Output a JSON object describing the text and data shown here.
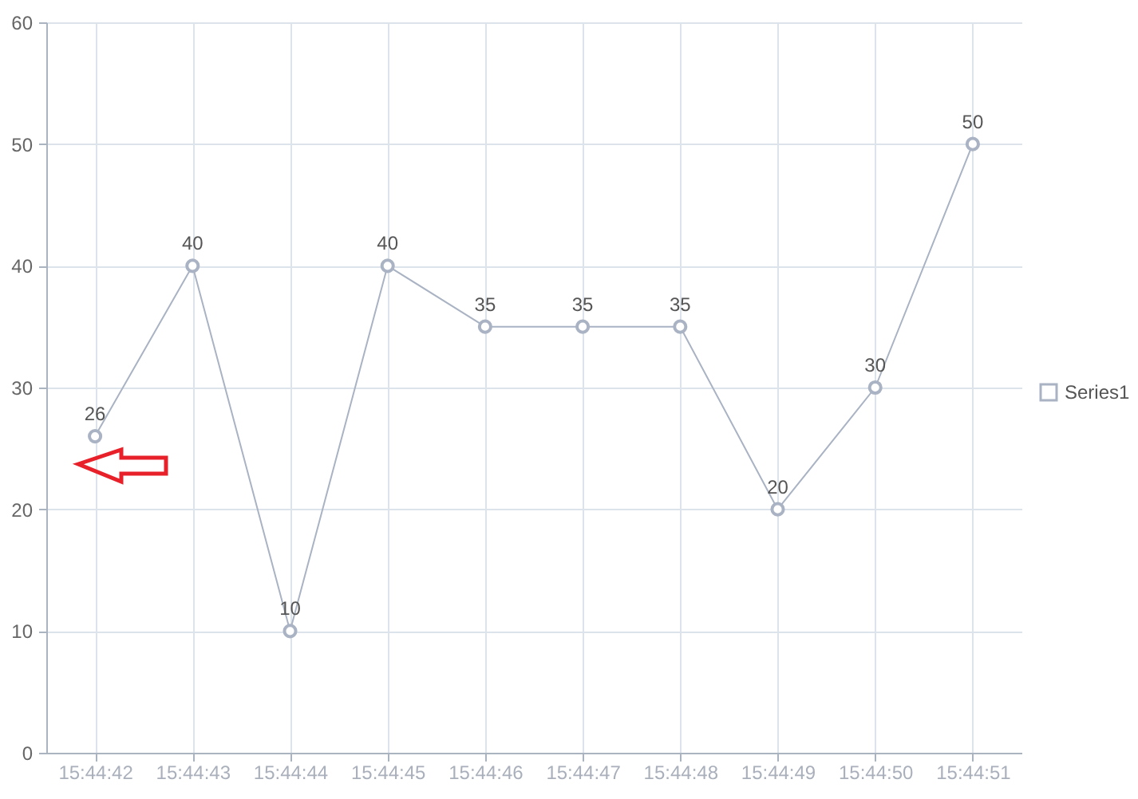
{
  "chart_data": {
    "type": "line",
    "categories": [
      "15:44:42",
      "15:44:43",
      "15:44:44",
      "15:44:45",
      "15:44:46",
      "15:44:47",
      "15:44:48",
      "15:44:49",
      "15:44:50",
      "15:44:51"
    ],
    "series": [
      {
        "name": "Series1",
        "color": "#a9b3c3",
        "values": [
          26,
          40,
          10,
          40,
          35,
          35,
          35,
          20,
          30,
          50
        ]
      }
    ],
    "ylim": [
      0,
      60
    ],
    "yticks": [
      0,
      10,
      20,
      30,
      40,
      50,
      60
    ],
    "grid": true,
    "legend": "right",
    "marker": "circle",
    "data_labels": true
  }
}
